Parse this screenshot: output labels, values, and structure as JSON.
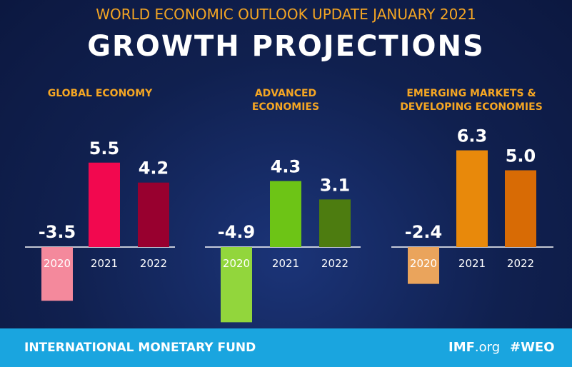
{
  "header": {
    "subtitle": "WORLD ECONOMIC OUTLOOK UPDATE JANUARY 2021",
    "title": "GROWTH PROJECTIONS"
  },
  "chart_data": [
    {
      "type": "bar",
      "title": "GLOBAL ECONOMY",
      "categories": [
        "2020",
        "2021",
        "2022"
      ],
      "values": [
        -3.5,
        5.5,
        4.2
      ],
      "value_labels": [
        "-3.5",
        "5.5",
        "4.2"
      ],
      "colors": [
        "#f4899c",
        "#f2084f",
        "#98002f"
      ]
    },
    {
      "type": "bar",
      "title": "ADVANCED ECONOMIES",
      "categories": [
        "2020",
        "2021",
        "2022"
      ],
      "values": [
        -4.9,
        4.3,
        3.1
      ],
      "value_labels": [
        "-4.9",
        "4.3",
        "3.1"
      ],
      "colors": [
        "#92d63c",
        "#6dc416",
        "#4d7c10"
      ]
    },
    {
      "type": "bar",
      "title": "EMERGING MARKETS & DEVELOPING ECONOMIES",
      "categories": [
        "2020",
        "2021",
        "2022"
      ],
      "values": [
        -2.4,
        6.3,
        5.0
      ],
      "value_labels": [
        "-2.4",
        "6.3",
        "5.0"
      ],
      "colors": [
        "#eaa45c",
        "#e8890b",
        "#d86b05"
      ]
    }
  ],
  "footer": {
    "organization": "INTERNATIONAL MONETARY FUND",
    "site_name": "IMF",
    "site_domain": ".org",
    "hashtag": "#WEO"
  }
}
